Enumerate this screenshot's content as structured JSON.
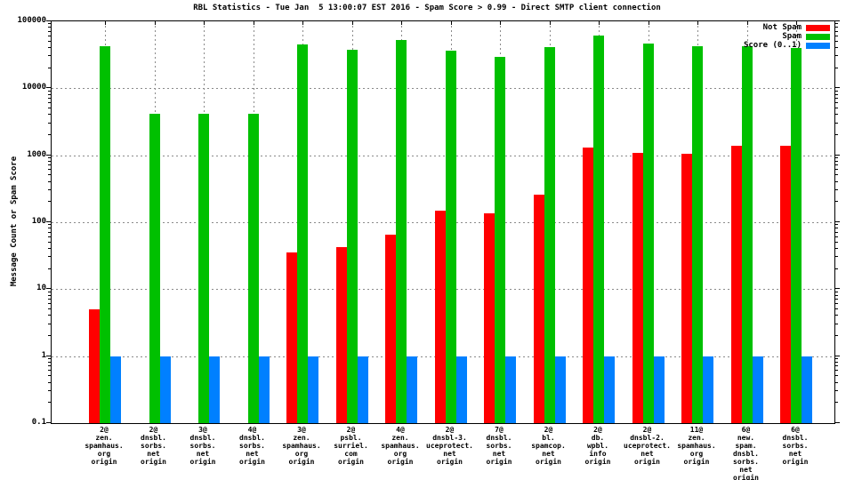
{
  "title": "RBL Statistics - Tue Jan  5 13:00:07 EST 2016 - Spam Score > 0.99 - Direct SMTP client connection",
  "y_axis": {
    "label": "Message Count or Spam Score",
    "tick_labels": [
      "100000",
      "10000",
      "1000",
      "100",
      "10",
      "1",
      "0.1"
    ]
  },
  "legend": [
    {
      "label": "Not Spam",
      "color": "#ff0000"
    },
    {
      "label": "Spam",
      "color": "#00c000"
    },
    {
      "label": "Score (0..1)",
      "color": "#0080ff"
    }
  ],
  "colors": {
    "not_spam": "#ff0000",
    "spam": "#00c000",
    "score": "#0080ff",
    "grid": "#8a8a8a",
    "axis": "#000000"
  },
  "chart_data": {
    "type": "bar",
    "y_scale": "log",
    "ylim": [
      0.1,
      100000
    ],
    "grid": true,
    "legend_position": "top-right",
    "title": "RBL Statistics - Tue Jan  5 13:00:07 EST 2016 - Spam Score > 0.99 - Direct SMTP client connection",
    "ylabel": "Message Count or Spam Score",
    "categories": [
      [
        "2@",
        "zen.",
        "spamhaus.",
        "org",
        "origin"
      ],
      [
        "2@",
        "dnsbl.",
        "sorbs.",
        "net",
        "origin"
      ],
      [
        "3@",
        "dnsbl.",
        "sorbs.",
        "net",
        "origin"
      ],
      [
        "4@",
        "dnsbl.",
        "sorbs.",
        "net",
        "origin"
      ],
      [
        "3@",
        "zen.",
        "spamhaus.",
        "org",
        "origin"
      ],
      [
        "2@",
        "psbl.",
        "surriel.",
        "com",
        "origin"
      ],
      [
        "4@",
        "zen.",
        "spamhaus.",
        "org",
        "origin"
      ],
      [
        "2@",
        "dnsbl-3.",
        "uceprotect.",
        "net",
        "origin"
      ],
      [
        "7@",
        "dnsbl.",
        "sorbs.",
        "net",
        "origin"
      ],
      [
        "2@",
        "bl.",
        "spamcop.",
        "net",
        "origin"
      ],
      [
        "2@",
        "db.",
        "wpbl.",
        "info",
        "origin"
      ],
      [
        "2@",
        "dnsbl-2.",
        "uceprotect.",
        "net",
        "origin"
      ],
      [
        "11@",
        "zen.",
        "spamhaus.",
        "org",
        "origin"
      ],
      [
        "6@",
        "new.",
        "spam.",
        "dnsbl.",
        "sorbs.",
        "net",
        "origin"
      ],
      [
        "6@",
        "dnsbl.",
        "sorbs.",
        "net",
        "origin"
      ]
    ],
    "series": [
      {
        "name": "Not Spam",
        "color": "#ff0000",
        "values": [
          5,
          null,
          null,
          null,
          35,
          42,
          65,
          150,
          135,
          260,
          1300,
          1100,
          1050,
          1400,
          1400
        ]
      },
      {
        "name": "Spam",
        "color": "#00c000",
        "values": [
          42000,
          4200,
          4200,
          4200,
          45000,
          38000,
          53000,
          37000,
          29000,
          41000,
          62000,
          47000,
          43000,
          42000,
          40000
        ]
      },
      {
        "name": "Score (0..1)",
        "color": "#0080ff",
        "values": [
          1,
          1,
          1,
          1,
          1,
          1,
          1,
          1,
          1,
          1,
          1,
          1,
          1,
          1,
          1
        ]
      }
    ]
  }
}
